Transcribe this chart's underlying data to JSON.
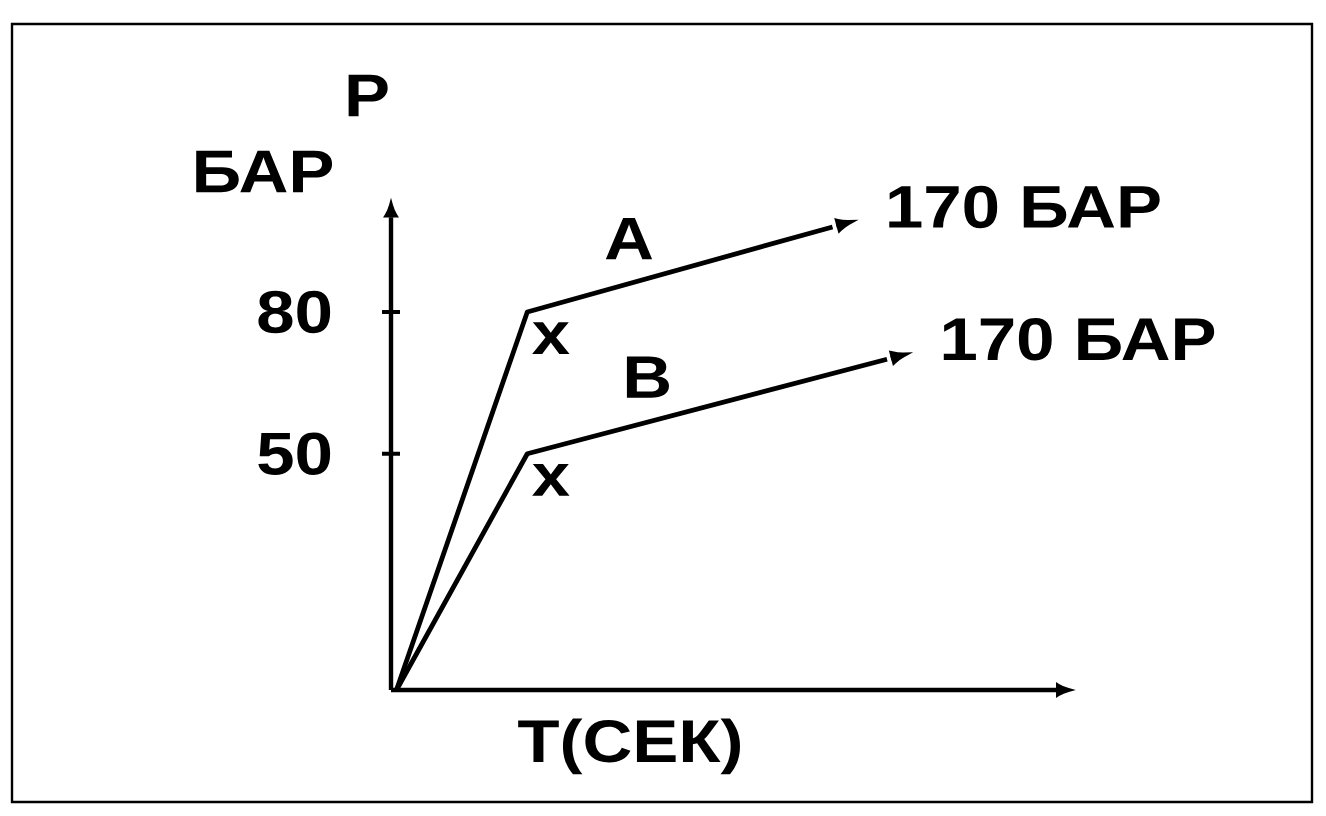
{
  "chart_data": {
    "type": "line",
    "xlabel": "T(СЕК)",
    "ylabel": "P",
    "annotations": [
      "БАР",
      "170 БАР",
      "170 БАР"
    ],
    "categories": [
      null,
      null,
      null,
      null,
      null,
      null,
      null,
      null,
      null,
      null,
      null,
      null,
      null,
      null,
      null,
      null,
      null,
      null,
      null,
      null,
      null,
      null,
      null,
      null,
      null,
      null,
      null,
      null,
      null,
      null,
      null,
      null,
      null,
      null,
      null,
      null,
      null,
      null,
      null,
      null,
      null,
      null,
      null,
      null,
      null,
      null,
      null,
      null,
      null,
      null,
      null,
      null,
      null,
      null,
      null,
      null,
      null,
      null,
      null,
      null,
      null
    ],
    "ylim": [
      0,
      100
    ],
    "yticks": [
      50,
      80
    ],
    "series": [
      {
        "name": "A",
        "color": "#000000",
        "values": [
          0,
          null,
          null,
          null,
          null,
          null,
          null,
          null,
          null,
          null,
          null,
          null,
          80,
          null,
          null,
          null,
          null,
          null,
          null,
          null,
          null,
          null,
          null,
          null,
          null,
          null,
          null,
          null,
          null,
          null,
          null,
          null,
          null,
          null,
          null,
          null,
          null,
          null,
          null,
          null,
          98,
          null,
          null,
          null,
          null,
          null,
          null,
          null,
          null,
          null,
          null,
          null,
          null,
          null,
          null,
          null,
          null,
          null,
          null,
          null,
          null
        ],
        "value_labels": [
          null,
          null,
          null,
          null,
          null,
          null,
          null,
          null,
          null,
          null,
          null,
          null,
          "x",
          null,
          null,
          null,
          null,
          null,
          null,
          null,
          null,
          null,
          null,
          null,
          null,
          null,
          null,
          null,
          null,
          null,
          null,
          null,
          null,
          null,
          null,
          null,
          null,
          null,
          null,
          null,
          null,
          null,
          null,
          null,
          null,
          null,
          null,
          null,
          null,
          null,
          null,
          null,
          null,
          null,
          null,
          null,
          null,
          null,
          null,
          null,
          null
        ]
      },
      {
        "name": "B",
        "color": "#000000",
        "values": [
          0,
          null,
          null,
          null,
          null,
          null,
          null,
          null,
          null,
          null,
          null,
          null,
          50,
          null,
          null,
          null,
          null,
          null,
          null,
          null,
          null,
          null,
          null,
          null,
          null,
          null,
          null,
          null,
          null,
          null,
          null,
          null,
          null,
          null,
          null,
          null,
          null,
          null,
          null,
          null,
          null,
          null,
          null,
          null,
          null,
          70,
          null,
          null,
          null,
          null,
          null,
          null,
          null,
          null,
          null,
          null,
          null,
          null,
          null,
          null,
          null
        ],
        "value_labels": [
          null,
          null,
          null,
          null,
          null,
          null,
          null,
          null,
          null,
          null,
          null,
          null,
          "x",
          null,
          null,
          null,
          null,
          null,
          null,
          null,
          null,
          null,
          null,
          null,
          null,
          null,
          null,
          null,
          null,
          null,
          null,
          null,
          null,
          null,
          null,
          null,
          null,
          null,
          null,
          null,
          null,
          null,
          null,
          null,
          null,
          null,
          null,
          null,
          null,
          null,
          null,
          null,
          null,
          null,
          null,
          null,
          null,
          null,
          null,
          null,
          null
        ]
      }
    ]
  }
}
